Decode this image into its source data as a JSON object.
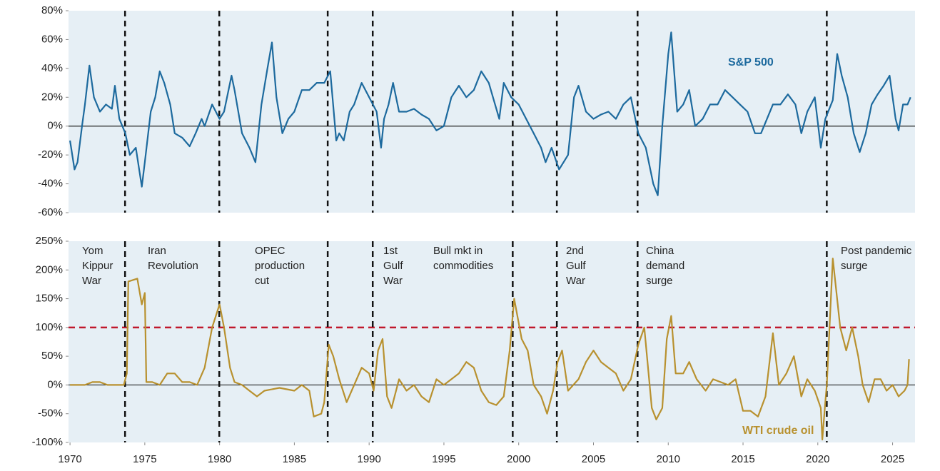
{
  "chart_data": [
    {
      "type": "line",
      "x": [
        1970.0,
        1970.3,
        1970.5,
        1970.8,
        1971.0,
        1971.3,
        1971.6,
        1972.0,
        1972.4,
        1972.8,
        1973.0,
        1973.3,
        1973.7,
        1974.0,
        1974.4,
        1974.8,
        1975.0,
        1975.4,
        1975.7,
        1976.0,
        1976.3,
        1976.7,
        1977.0,
        1977.5,
        1978.0,
        1978.4,
        1978.8,
        1979.0,
        1979.5,
        1980.0,
        1980.3,
        1980.8,
        1981.0,
        1981.5,
        1982.0,
        1982.4,
        1982.8,
        1983.2,
        1983.5,
        1983.8,
        1984.2,
        1984.6,
        1985.0,
        1985.5,
        1986.0,
        1986.5,
        1987.0,
        1987.4,
        1987.8,
        1988.0,
        1988.3,
        1988.7,
        1989.0,
        1989.5,
        1990.0,
        1990.5,
        1990.8,
        1991.0,
        1991.3,
        1991.6,
        1992.0,
        1992.5,
        1993.0,
        1993.5,
        1994.0,
        1994.5,
        1995.0,
        1995.5,
        1996.0,
        1996.5,
        1997.0,
        1997.5,
        1998.0,
        1998.7,
        1999.0,
        1999.5,
        2000.0,
        2000.5,
        2001.0,
        2001.5,
        2001.8,
        2002.2,
        2002.7,
        2003.0,
        2003.3,
        2003.7,
        2004.0,
        2004.5,
        2005.0,
        2005.5,
        2006.0,
        2006.5,
        2007.0,
        2007.5,
        2008.0,
        2008.5,
        2009.0,
        2009.3,
        2009.6,
        2010.0,
        2010.2,
        2010.6,
        2011.0,
        2011.4,
        2011.8,
        2012.3,
        2012.8,
        2013.3,
        2013.8,
        2014.3,
        2014.8,
        2015.3,
        2015.8,
        2016.2,
        2016.6,
        2017.0,
        2017.5,
        2018.0,
        2018.5,
        2018.9,
        2019.3,
        2019.8,
        2020.2,
        2020.5,
        2021.0,
        2021.3,
        2021.6,
        2022.0,
        2022.4,
        2022.8,
        2023.2,
        2023.6,
        2024.0,
        2024.4,
        2024.8,
        2025.2,
        2025.4,
        2025.7,
        2026.0,
        2026.2
      ],
      "series": [
        {
          "name": "S&P 500",
          "color": "#1d6a9e",
          "values": [
            -10,
            -30,
            -25,
            0,
            15,
            42,
            20,
            10,
            15,
            12,
            28,
            5,
            -5,
            -20,
            -15,
            -42,
            -25,
            10,
            20,
            38,
            30,
            15,
            -5,
            -8,
            -14,
            -5,
            5,
            0,
            15,
            5,
            10,
            35,
            25,
            -5,
            -15,
            -25,
            15,
            40,
            58,
            20,
            -5,
            5,
            10,
            25,
            25,
            30,
            30,
            38,
            -10,
            -5,
            -10,
            10,
            15,
            30,
            20,
            10,
            -15,
            5,
            15,
            30,
            10,
            10,
            12,
            8,
            5,
            -3,
            0,
            20,
            28,
            20,
            25,
            38,
            30,
            5,
            30,
            20,
            15,
            5,
            -5,
            -15,
            -25,
            -15,
            -30,
            -25,
            -20,
            20,
            28,
            10,
            5,
            8,
            10,
            5,
            15,
            20,
            -5,
            -15,
            -40,
            -48,
            0,
            50,
            65,
            10,
            15,
            25,
            0,
            5,
            15,
            15,
            25,
            20,
            15,
            10,
            -5,
            -5,
            5,
            15,
            15,
            22,
            15,
            -5,
            10,
            20,
            -15,
            5,
            18,
            50,
            35,
            20,
            -5,
            -18,
            -5,
            15,
            22,
            28,
            35,
            5,
            -3,
            15,
            15,
            20
          ]
        }
      ],
      "xlim": [
        1969.9,
        2026.5
      ],
      "ylim": [
        -60,
        80
      ],
      "yticks": [
        {
          "value": -60,
          "label": "-60%"
        },
        {
          "value": -40,
          "label": "-40%"
        },
        {
          "value": -20,
          "label": "-20%"
        },
        {
          "value": 0,
          "label": "0%"
        },
        {
          "value": 20,
          "label": "20%"
        },
        {
          "value": 40,
          "label": "40%"
        },
        {
          "value": 60,
          "label": "60%"
        },
        {
          "value": 80,
          "label": "80%"
        }
      ],
      "background": "#e6eff5"
    },
    {
      "type": "line",
      "x": [
        1970.0,
        1971.0,
        1971.5,
        1972.0,
        1972.5,
        1973.0,
        1973.6,
        1973.8,
        1973.9,
        1974.5,
        1974.8,
        1975.0,
        1975.1,
        1975.5,
        1976.0,
        1976.5,
        1977.0,
        1977.5,
        1978.0,
        1978.5,
        1979.0,
        1979.5,
        1980.0,
        1980.3,
        1980.7,
        1981.0,
        1981.5,
        1982.0,
        1982.5,
        1983.0,
        1984.0,
        1985.0,
        1985.5,
        1986.0,
        1986.3,
        1986.8,
        1987.0,
        1987.3,
        1987.6,
        1988.0,
        1988.5,
        1989.0,
        1989.5,
        1990.0,
        1990.3,
        1990.6,
        1990.9,
        1991.2,
        1991.5,
        1992.0,
        1992.5,
        1993.0,
        1993.5,
        1994.0,
        1994.5,
        1995.0,
        1995.5,
        1996.0,
        1996.5,
        1997.0,
        1997.5,
        1998.0,
        1998.5,
        1999.0,
        1999.4,
        1999.7,
        2000.2,
        2000.6,
        2001.0,
        2001.5,
        2001.9,
        2002.3,
        2002.6,
        2002.9,
        2003.3,
        2004.0,
        2004.5,
        2005.0,
        2005.5,
        2006.0,
        2006.5,
        2007.0,
        2007.5,
        2008.0,
        2008.4,
        2008.9,
        2009.2,
        2009.6,
        2009.9,
        2010.2,
        2010.5,
        2011.0,
        2011.4,
        2011.9,
        2012.5,
        2013.0,
        2013.5,
        2014.0,
        2014.5,
        2015.0,
        2015.5,
        2016.0,
        2016.5,
        2017.0,
        2017.4,
        2017.9,
        2018.4,
        2018.9,
        2019.3,
        2019.8,
        2020.2,
        2020.3,
        2020.5,
        2020.6,
        2021.0,
        2021.5,
        2021.9,
        2022.3,
        2022.7,
        2023.0,
        2023.4,
        2023.8,
        2024.2,
        2024.6,
        2025.0,
        2025.4,
        2025.8,
        2026.0,
        2026.1
      ],
      "series": [
        {
          "name": "WTI crude oil",
          "color": "#b8912f",
          "values": [
            0,
            0,
            5,
            5,
            0,
            0,
            0,
            20,
            180,
            185,
            140,
            160,
            5,
            5,
            0,
            20,
            20,
            5,
            5,
            0,
            30,
            100,
            140,
            100,
            30,
            5,
            0,
            -10,
            -20,
            -10,
            -5,
            -10,
            0,
            -10,
            -55,
            -50,
            -30,
            70,
            50,
            10,
            -30,
            0,
            30,
            20,
            -10,
            60,
            80,
            -20,
            -40,
            10,
            -10,
            0,
            -20,
            -30,
            10,
            0,
            10,
            20,
            40,
            30,
            -10,
            -30,
            -35,
            -20,
            60,
            150,
            80,
            60,
            0,
            -20,
            -50,
            -10,
            40,
            60,
            -10,
            10,
            40,
            60,
            40,
            30,
            20,
            -10,
            10,
            70,
            100,
            -40,
            -60,
            -40,
            80,
            120,
            20,
            20,
            40,
            10,
            -10,
            10,
            5,
            0,
            10,
            -45,
            -45,
            -55,
            -20,
            90,
            0,
            20,
            50,
            -20,
            10,
            -10,
            -40,
            -95,
            -30,
            0,
            220,
            100,
            60,
            100,
            50,
            0,
            -30,
            10,
            10,
            -10,
            0,
            -20,
            -10,
            0,
            45
          ]
        }
      ],
      "xlim": [
        1969.9,
        2026.5
      ],
      "ylim": [
        -100,
        250
      ],
      "yticks": [
        {
          "value": -100,
          "label": "-100%"
        },
        {
          "value": -50,
          "label": "-50%"
        },
        {
          "value": 0,
          "label": "0%"
        },
        {
          "value": 50,
          "label": "50%"
        },
        {
          "value": 100,
          "label": "100%"
        },
        {
          "value": 150,
          "label": "150%"
        },
        {
          "value": 200,
          "label": "200%"
        },
        {
          "value": 250,
          "label": "250%"
        }
      ],
      "xticks": [
        1970,
        1975,
        1980,
        1985,
        1990,
        1995,
        2000,
        2005,
        2010,
        2015,
        2020,
        2025
      ],
      "reference_line": {
        "value": 100,
        "color": "#c0182c"
      },
      "events": [
        {
          "x": 1973.68,
          "label": [
            "Yom",
            "Kippur",
            "War"
          ]
        },
        {
          "x": 1979.98,
          "label": [
            "Iran",
            "Revolution"
          ]
        },
        {
          "x": 1987.23,
          "label": [
            "OPEC",
            "production",
            "cut"
          ]
        },
        {
          "x": 1990.24,
          "label": [
            "1st",
            "Gulf",
            "War"
          ]
        },
        {
          "x": 1999.6,
          "label": [
            "Bull mkt in",
            "commodities"
          ]
        },
        {
          "x": 2002.55,
          "label": [
            "2nd",
            "Gulf",
            "War"
          ]
        },
        {
          "x": 2007.95,
          "label": [
            "China",
            "demand",
            "surge"
          ]
        },
        {
          "x": 2020.6,
          "label": [
            "Post pandemic",
            "surge"
          ]
        }
      ],
      "background": "#e6eff5"
    }
  ]
}
